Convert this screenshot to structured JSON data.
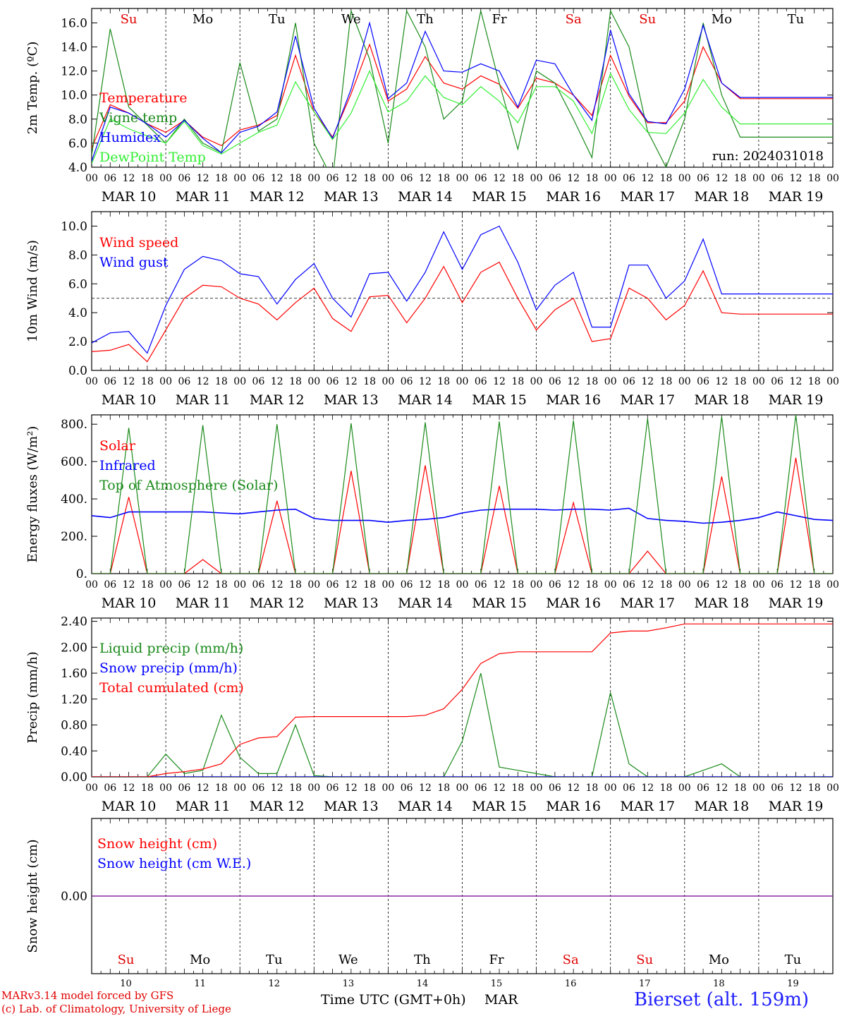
{
  "run_label": "run: 2024031018",
  "weekday_labels": [
    {
      "text": "Su",
      "color": "#e00000"
    },
    {
      "text": "Mo",
      "color": "#000000"
    },
    {
      "text": "Tu",
      "color": "#000000"
    },
    {
      "text": "We",
      "color": "#000000"
    },
    {
      "text": "Th",
      "color": "#000000"
    },
    {
      "text": "Fr",
      "color": "#000000"
    },
    {
      "text": "Sa",
      "color": "#e00000"
    },
    {
      "text": "Su",
      "color": "#e00000"
    },
    {
      "text": "Mo",
      "color": "#000000"
    },
    {
      "text": "Tu",
      "color": "#000000"
    }
  ],
  "date_labels": [
    "MAR 10",
    "MAR 11",
    "MAR 12",
    "MAR 13",
    "MAR 14",
    "MAR 15",
    "MAR 16",
    "MAR 17",
    "MAR 18",
    "MAR 19"
  ],
  "hour_ticks": [
    "00",
    "06",
    "12",
    "18"
  ],
  "day_numbers": [
    "10",
    "11",
    "12",
    "13",
    "14",
    "15",
    "16",
    "17",
    "18",
    "19"
  ],
  "footer": {
    "x_title": "Time UTC (GMT+0h)",
    "month": "MAR",
    "credit_line1": "MARv3.14 model forced by GFS",
    "credit_line2": "(c) Lab. of Climatology, University of Liege",
    "station": "Bierset (alt. 159m)"
  },
  "colors": {
    "red": "#ff0000",
    "darkgreen": "#1a8a1a",
    "blue": "#0000ff",
    "lightgreen": "#33ee33",
    "purple": "#8020a0"
  },
  "chart_data": [
    {
      "type": "line",
      "ylabel": "2m Temp. (ºC)",
      "ylim": [
        4.0,
        17.2
      ],
      "yticks": [
        4.0,
        6.0,
        8.0,
        10.0,
        12.0,
        14.0,
        16.0
      ],
      "ytick_labels": [
        "4.0",
        "6.0",
        "8.0",
        "10.0",
        "12.0",
        "14.0",
        "16.0"
      ],
      "x": [
        0,
        6,
        12,
        18,
        24,
        30,
        36,
        42,
        48,
        54,
        60,
        66,
        72,
        78,
        84,
        90,
        96,
        102,
        108,
        114,
        120,
        126,
        132,
        138,
        144,
        150,
        156,
        162,
        168,
        174,
        180,
        186,
        192,
        198,
        204,
        210,
        216,
        222,
        228,
        234,
        240
      ],
      "series": [
        {
          "name": "Temperature",
          "color": "#ff0000",
          "values": [
            5.6,
            9.2,
            8.5,
            7.6,
            6.9,
            7.9,
            6.5,
            5.8,
            7.1,
            7.5,
            8.3,
            13.3,
            8.6,
            6.5,
            10.1,
            14.2,
            9.5,
            10.5,
            13.2,
            11.0,
            10.5,
            11.6,
            10.9,
            8.9,
            11.4,
            11.0,
            10.0,
            8.3,
            13.3,
            9.9,
            7.7,
            7.7,
            9.5,
            14.0,
            11.0,
            9.7,
            9.7,
            9.7,
            9.7,
            9.7,
            9.7
          ]
        },
        {
          "name": "Vigne temp",
          "color": "#1a8a1a",
          "values": [
            5.0,
            15.5,
            9.0,
            7.5,
            6.0,
            8.0,
            6.0,
            5.2,
            12.7,
            7.0,
            8.0,
            16.0,
            6.0,
            3.0,
            17.0,
            13.0,
            6.0,
            17.0,
            14.0,
            8.0,
            9.5,
            17.0,
            11.0,
            5.5,
            12.0,
            11.0,
            8.0,
            4.8,
            17.0,
            14.0,
            7.0,
            4.0,
            8.0,
            16.0,
            10.0,
            6.5,
            6.5,
            6.5,
            6.5,
            6.5,
            6.5
          ]
        },
        {
          "name": "Humidex",
          "color": "#0000ff",
          "values": [
            4.5,
            9.0,
            8.5,
            7.6,
            6.5,
            7.9,
            6.4,
            5.2,
            6.9,
            7.4,
            8.6,
            14.9,
            8.9,
            6.4,
            10.5,
            16.0,
            9.7,
            11.0,
            15.3,
            12.0,
            11.9,
            12.6,
            12.0,
            9.0,
            12.9,
            12.6,
            10.0,
            7.9,
            15.4,
            10.1,
            7.8,
            7.6,
            10.5,
            15.8,
            11.0,
            9.8,
            9.8,
            9.8,
            9.8,
            9.8,
            9.8
          ]
        },
        {
          "name": "DewPoint Temp",
          "color": "#33ee33",
          "values": [
            4.3,
            8.0,
            7.2,
            6.6,
            6.0,
            7.8,
            5.8,
            5.1,
            6.0,
            6.9,
            7.5,
            11.1,
            8.6,
            6.3,
            8.5,
            12.0,
            8.6,
            9.5,
            11.6,
            9.8,
            9.2,
            10.7,
            9.5,
            7.7,
            10.7,
            10.7,
            9.5,
            6.8,
            11.8,
            8.8,
            6.9,
            6.8,
            8.5,
            11.3,
            9.0,
            7.6,
            7.6,
            7.6,
            7.6,
            7.6,
            7.6
          ]
        }
      ],
      "legend": [
        "Temperature",
        "Vigne temp",
        "Humidex",
        "DewPoint Temp"
      ],
      "legend_placement": "left"
    },
    {
      "type": "line",
      "ylabel": "10m Wind (m/s)",
      "ylim": [
        0.0,
        11.0
      ],
      "yticks": [
        0.0,
        2.0,
        4.0,
        6.0,
        8.0,
        10.0
      ],
      "ytick_labels": [
        "0.0",
        "2.0",
        "4.0",
        "6.0",
        "8.0",
        "10.0"
      ],
      "reference_line": 5.0,
      "x": [
        0,
        6,
        12,
        18,
        24,
        30,
        36,
        42,
        48,
        54,
        60,
        66,
        72,
        78,
        84,
        90,
        96,
        102,
        108,
        114,
        120,
        126,
        132,
        138,
        144,
        150,
        156,
        162,
        168,
        174,
        180,
        186,
        192,
        198,
        204,
        210,
        216,
        222,
        228,
        234,
        240
      ],
      "series": [
        {
          "name": "Wind speed",
          "color": "#ff0000",
          "values": [
            1.3,
            1.4,
            1.8,
            0.6,
            2.8,
            5.0,
            5.9,
            5.8,
            5.0,
            4.6,
            3.5,
            4.7,
            5.7,
            3.6,
            2.7,
            5.1,
            5.2,
            3.3,
            5.0,
            7.2,
            4.7,
            6.8,
            7.5,
            5.0,
            2.8,
            4.2,
            5.0,
            2.0,
            2.2,
            5.7,
            5.0,
            3.5,
            4.5,
            6.9,
            4.0,
            3.9,
            3.9,
            3.9,
            3.9,
            3.9,
            3.9
          ]
        },
        {
          "name": "Wind gust",
          "color": "#0000ff",
          "values": [
            1.9,
            2.6,
            2.7,
            1.2,
            4.5,
            7.0,
            7.9,
            7.6,
            6.7,
            6.5,
            4.6,
            6.3,
            7.4,
            5.0,
            3.7,
            6.7,
            6.8,
            4.8,
            6.8,
            9.6,
            7.0,
            9.4,
            10.0,
            7.5,
            4.2,
            5.9,
            6.8,
            3.0,
            3.0,
            7.3,
            7.3,
            5.0,
            6.2,
            9.1,
            5.3,
            5.3,
            5.3,
            5.3,
            5.3,
            5.3,
            5.3
          ]
        }
      ],
      "legend": [
        "Wind speed",
        "Wind gust"
      ],
      "legend_placement": "left"
    },
    {
      "type": "line",
      "ylabel": "Energy fluxes (W/m²)",
      "ylim": [
        0,
        850
      ],
      "yticks": [
        0,
        200,
        400,
        600,
        800
      ],
      "ytick_labels": [
        "0.",
        "200.",
        "400.",
        "600.",
        "800."
      ],
      "x": [
        0,
        6,
        12,
        18,
        24,
        30,
        36,
        42,
        48,
        54,
        60,
        66,
        72,
        78,
        84,
        90,
        96,
        102,
        108,
        114,
        120,
        126,
        132,
        138,
        144,
        150,
        156,
        162,
        168,
        174,
        180,
        186,
        192,
        198,
        204,
        210,
        216,
        222,
        228,
        234,
        240
      ],
      "series": [
        {
          "name": "Solar",
          "color": "#ff0000",
          "values": [
            0,
            0,
            410,
            0,
            0,
            0,
            75,
            0,
            0,
            0,
            390,
            0,
            0,
            0,
            550,
            0,
            0,
            0,
            580,
            0,
            0,
            0,
            470,
            0,
            0,
            0,
            380,
            0,
            0,
            0,
            120,
            0,
            0,
            0,
            520,
            0,
            0,
            0,
            620,
            0,
            0
          ]
        },
        {
          "name": "Infrared",
          "color": "#0000ff",
          "values": [
            310,
            300,
            330,
            330,
            330,
            330,
            330,
            325,
            320,
            330,
            340,
            345,
            295,
            285,
            285,
            285,
            275,
            285,
            290,
            300,
            325,
            340,
            345,
            345,
            345,
            340,
            345,
            345,
            340,
            350,
            295,
            285,
            280,
            270,
            275,
            285,
            300,
            330,
            310,
            290,
            285
          ]
        },
        {
          "name": "Top of Atmosphere (Solar)",
          "color": "#1a8a1a",
          "values": [
            0,
            0,
            780,
            0,
            0,
            0,
            795,
            0,
            0,
            0,
            800,
            0,
            0,
            0,
            805,
            0,
            0,
            0,
            810,
            0,
            0,
            0,
            815,
            0,
            0,
            0,
            820,
            0,
            0,
            0,
            830,
            0,
            0,
            0,
            840,
            0,
            0,
            0,
            850,
            0,
            0
          ]
        }
      ],
      "legend": [
        "Solar",
        "Infrared",
        "Top of Atmosphere (Solar)"
      ],
      "legend_placement": "left"
    },
    {
      "type": "line",
      "ylabel": "Precip (mm/h)",
      "ylim": [
        0,
        2.45
      ],
      "yticks": [
        0.0,
        0.4,
        0.8,
        1.2,
        1.6,
        2.0,
        2.4
      ],
      "ytick_labels": [
        "0.00",
        "0.40",
        "0.80",
        "1.20",
        "1.60",
        "2.00",
        "2.40"
      ],
      "x": [
        0,
        6,
        12,
        18,
        24,
        30,
        36,
        42,
        48,
        54,
        60,
        66,
        72,
        78,
        84,
        90,
        96,
        102,
        108,
        114,
        120,
        126,
        132,
        138,
        144,
        150,
        156,
        162,
        168,
        174,
        180,
        186,
        192,
        198,
        204,
        210,
        216,
        222,
        228,
        234,
        240
      ],
      "series": [
        {
          "name": "Liquid precip (mm/h)",
          "color": "#1a8a1a",
          "values": [
            0,
            0,
            0,
            0,
            0.35,
            0.05,
            0.1,
            0.95,
            0.3,
            0.05,
            0.05,
            0.8,
            0.02,
            0,
            0,
            0,
            0,
            0,
            0,
            0,
            0.55,
            1.6,
            0.15,
            0.1,
            0.05,
            0,
            0,
            0,
            1.3,
            0.2,
            0,
            0,
            0,
            0.1,
            0.2,
            0,
            0,
            0,
            0,
            0,
            0
          ]
        },
        {
          "name": "Snow precip (mm/h)",
          "color": "#0000ff",
          "values": [
            0,
            0,
            0,
            0,
            0,
            0,
            0,
            0,
            0,
            0,
            0,
            0,
            0,
            0,
            0,
            0,
            0,
            0,
            0,
            0,
            0,
            0,
            0,
            0,
            0,
            0,
            0,
            0,
            0,
            0,
            0,
            0,
            0,
            0,
            0,
            0,
            0,
            0,
            0,
            0,
            0
          ]
        },
        {
          "name": "Total cumulated (cm)",
          "color": "#ff0000",
          "values": [
            0,
            0,
            0,
            0,
            0.05,
            0.08,
            0.12,
            0.2,
            0.5,
            0.6,
            0.62,
            0.92,
            0.93,
            0.93,
            0.93,
            0.93,
            0.93,
            0.93,
            0.95,
            1.05,
            1.35,
            1.75,
            1.9,
            1.93,
            1.93,
            1.93,
            1.93,
            1.93,
            2.22,
            2.25,
            2.25,
            2.3,
            2.36,
            2.36,
            2.36,
            2.36,
            2.36,
            2.36,
            2.36,
            2.36,
            2.36
          ]
        }
      ],
      "legend": [
        "Liquid precip (mm/h)",
        "Snow precip (mm/h)",
        "Total cumulated (cm)"
      ],
      "legend_placement": "left"
    },
    {
      "type": "line",
      "ylabel": "Snow height (cm)",
      "ylim": [
        -1,
        1
      ],
      "yticks": [
        0.0
      ],
      "ytick_labels": [
        "0.00"
      ],
      "x": [
        0,
        240
      ],
      "series": [
        {
          "name": "Snow height (cm)",
          "color": "#ff0000",
          "values": [
            0,
            0
          ]
        },
        {
          "name": "Snow height (cm W.E.)",
          "color": "#0000ff",
          "values": [
            0,
            0
          ]
        }
      ],
      "legend": [
        "Snow height (cm)",
        "Snow height (cm W.E.)"
      ],
      "legend_placement": "left"
    }
  ]
}
